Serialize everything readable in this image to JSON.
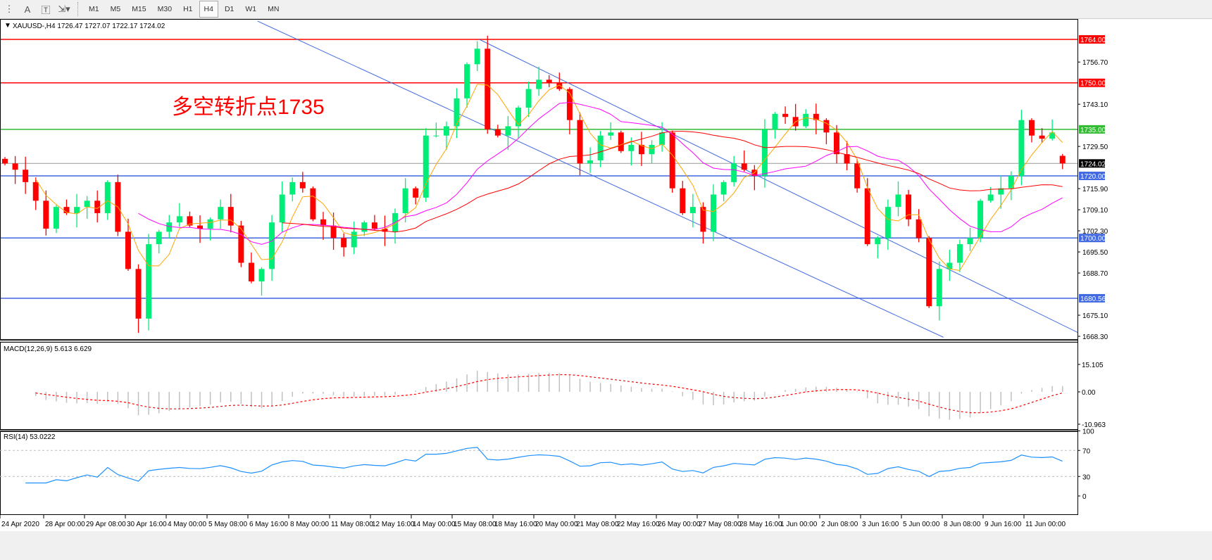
{
  "toolbar": {
    "icons": [
      "fibonacci-icon",
      "text-icon",
      "text-label-icon",
      "arrows-icon"
    ],
    "text_tool": "A",
    "timeframes": [
      "M1",
      "M5",
      "M15",
      "M30",
      "H1",
      "H4",
      "D1",
      "W1",
      "MN"
    ],
    "active_timeframe": "H4"
  },
  "header": {
    "symbol": "XAUUSD-,H4",
    "ohlc": "1726.47 1727.07 1722.17 1724.02"
  },
  "annotation": {
    "text": "多空转折点1735",
    "color": "#ff0000"
  },
  "chart_data": {
    "type": "candlestick",
    "title": "XAUUSD-,H4",
    "ylim": [
      1668.3,
      1764.0
    ],
    "price_ticks": [
      "1756.70",
      "1743.10",
      "1729.50",
      "1715.90",
      "1709.10",
      "1702.30",
      "1695.50",
      "1688.70",
      "1675.10",
      "1668.30"
    ],
    "time_labels": [
      "24 Apr 2020",
      "28 Apr 00:00",
      "29 Apr 08:00",
      "30 Apr 16:00",
      "4 May 00:00",
      "5 May 08:00",
      "6 May 16:00",
      "8 May 00:00",
      "11 May 08:00",
      "12 May 16:00",
      "14 May 00:00",
      "15 May 08:00",
      "18 May 16:00",
      "20 May 00:00",
      "21 May 08:00",
      "22 May 16:00",
      "26 May 00:00",
      "27 May 08:00",
      "28 May 16:00",
      "1 Jun 00:00",
      "2 Jun 08:00",
      "3 Jun 16:00",
      "5 Jun 00:00",
      "8 Jun 08:00",
      "9 Jun 16:00",
      "11 Jun 00:00"
    ],
    "closes": [
      1724,
      1722,
      1718,
      1712,
      1703,
      1710,
      1708,
      1710,
      1712,
      1708,
      1718,
      1702,
      1690,
      1674,
      1698,
      1702,
      1705,
      1707,
      1704,
      1703,
      1706,
      1710,
      1704,
      1692,
      1686,
      1690,
      1705,
      1714,
      1718,
      1716,
      1706,
      1704,
      1700,
      1697,
      1702,
      1705,
      1703,
      1702,
      1708,
      1716,
      1713,
      1733,
      1733,
      1736,
      1745,
      1756,
      1761,
      1735,
      1733,
      1736,
      1742,
      1748,
      1751,
      1750,
      1748,
      1738,
      1724,
      1725,
      1733,
      1734,
      1728,
      1730,
      1727,
      1730,
      1734,
      1716,
      1708,
      1710,
      1702,
      1714,
      1718,
      1724,
      1722,
      1720,
      1735,
      1740,
      1739,
      1736,
      1740,
      1738,
      1734,
      1727,
      1724,
      1716,
      1698,
      1700,
      1710,
      1714,
      1706,
      1700,
      1678,
      1690,
      1692,
      1698,
      1700,
      1712,
      1714,
      1716,
      1720,
      1738,
      1733,
      1732,
      1734,
      1724.02
    ],
    "last_bar": {
      "open": 1726.47,
      "high": 1727.07,
      "low": 1722.17,
      "close": 1724.02
    },
    "current_price": {
      "label": "1724.02",
      "color": "#000000"
    },
    "levels": [
      {
        "price": 1764.0,
        "label": "1764.00",
        "color": "#ff0000"
      },
      {
        "price": 1750.0,
        "label": "1750.00",
        "color": "#ff0000"
      },
      {
        "price": 1735.0,
        "label": "1735.00",
        "color": "#33bb33"
      },
      {
        "price": 1720.0,
        "label": "1720.00",
        "color": "#4169e1"
      },
      {
        "price": 1700.0,
        "label": "1700.00",
        "color": "#4169e1"
      },
      {
        "price": 1680.56,
        "label": "1680.56",
        "color": "#4169e1"
      }
    ],
    "trendlines": [
      {
        "from": {
          "bar": 24.6,
          "price": 1769.9
        },
        "to": {
          "bar": 91.4,
          "price": 1668.0
        },
        "color": "#4169e1"
      },
      {
        "from": {
          "bar": 46.2,
          "price": 1764.0
        },
        "to": {
          "bar": 104.5,
          "price": 1669.5
        },
        "color": "#4169e1"
      }
    ],
    "moving_averages": [
      {
        "color": "#ffa500"
      },
      {
        "color": "#ff00ff"
      },
      {
        "color": "#ff0000"
      }
    ],
    "colors": {
      "bull": "#00ee77",
      "bear": "#ff0000"
    },
    "macd": {
      "label": "MACD(12,26,9) 5.613 6.629",
      "max": "15.105",
      "zero": "0.00",
      "min": "-10.963",
      "histogram_color": "#c0c0c0",
      "signal_color": "#ff0000"
    },
    "rsi": {
      "label": "RSI(14) 53.0222",
      "levels": [
        "100",
        "70",
        "30",
        "0"
      ],
      "color": "#1e90ff"
    }
  }
}
